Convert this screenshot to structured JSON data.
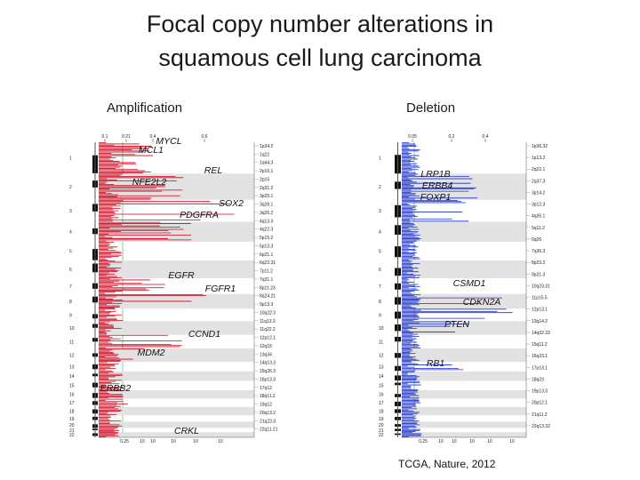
{
  "title_line1": "Focal copy number alterations in",
  "title_line2": "squamous cell lung carcinoma",
  "citation": "TCGA, Nature, 2012",
  "colors": {
    "amplification": "#d0021b",
    "deletion": "#1a2fcc",
    "band": "#e2e2e2",
    "ideogram": "#111111",
    "threshold": "#39a852"
  },
  "chart_data": [
    {
      "type": "bar",
      "panel_title": "Amplification",
      "orientation": "horizontal",
      "top_ticks": [
        "0.1",
        "0.21",
        "0.4",
        "0.6"
      ],
      "bottom_ticks": [
        "0.25",
        "10",
        "10",
        "10",
        "10",
        "10"
      ],
      "chromosomes": [
        "1",
        "2",
        "3",
        "4",
        "5",
        "6",
        "7",
        "8",
        "9",
        "10",
        "11",
        "12",
        "13",
        "14",
        "15",
        "16",
        "17",
        "18",
        "19",
        "20",
        "21",
        "22"
      ],
      "genes": [
        {
          "name": "MYCL",
          "chr": "1"
        },
        {
          "name": "MCL1",
          "chr": "1"
        },
        {
          "name": "REL",
          "chr": "2"
        },
        {
          "name": "NFE2L2",
          "chr": "2"
        },
        {
          "name": "SOX2",
          "chr": "3"
        },
        {
          "name": "PDGFRA",
          "chr": "4"
        },
        {
          "name": "EGFR",
          "chr": "7"
        },
        {
          "name": "FGFR1",
          "chr": "8"
        },
        {
          "name": "CCND1",
          "chr": "11"
        },
        {
          "name": "MDM2",
          "chr": "12"
        },
        {
          "name": "ERBB2",
          "chr": "17"
        },
        {
          "name": "CRKL",
          "chr": "22"
        }
      ],
      "cytobands": [
        "1p34.2",
        "1q22",
        "1q44.3",
        "2p16.1",
        "2p15",
        "2q31.2",
        "3p25.1",
        "3q28.1",
        "3q26.2",
        "4q13.3",
        "4q22.3",
        "5p15.2",
        "5p13.3",
        "6p21.1",
        "6q22.31",
        "7p11.2",
        "7q31.1",
        "8p11.23",
        "8q24.21",
        "9p13.3",
        "10q22.3",
        "11q13.3",
        "11q22.2",
        "12p12.1",
        "12q15",
        "13q34",
        "14q13.3",
        "15q26.3",
        "16p13.3",
        "17q12",
        "18q11.2",
        "19q12",
        "20q13.2",
        "21q22.3",
        "22q11.21"
      ]
    },
    {
      "type": "bar",
      "panel_title": "Deletion",
      "orientation": "horizontal",
      "top_ticks": [
        "0.05",
        "0.2",
        "0.4"
      ],
      "bottom_ticks": [
        "0.25",
        "10",
        "10",
        "10",
        "10",
        "10"
      ],
      "chromosomes": [
        "1",
        "2",
        "3",
        "4",
        "5",
        "6",
        "7",
        "8",
        "9",
        "10",
        "11",
        "12",
        "13",
        "14",
        "15",
        "16",
        "17",
        "18",
        "19",
        "20",
        "21",
        "22"
      ],
      "genes": [
        {
          "name": "LRP1B",
          "chr": "2"
        },
        {
          "name": "ERBB4",
          "chr": "2"
        },
        {
          "name": "FOXP1",
          "chr": "3"
        },
        {
          "name": "CSMD1",
          "chr": "8"
        },
        {
          "name": "CDKN2A",
          "chr": "9"
        },
        {
          "name": "PTEN",
          "chr": "10"
        },
        {
          "name": "RB1",
          "chr": "13"
        }
      ],
      "cytobands": [
        "1p36.32",
        "1p13.2",
        "2q22.1",
        "2q37.3",
        "3p14.2",
        "3p12.3",
        "4q35.1",
        "5q11.2",
        "6q26",
        "7q36.3",
        "8p23.2",
        "9p21.3",
        "10q23.31",
        "11p15.5",
        "12p13.1",
        "13q14.2",
        "14q32.33",
        "15q11.2",
        "16q23.1",
        "17p13.1",
        "18q23",
        "19p13.3",
        "20p12.1",
        "21q11.2",
        "22q13.32"
      ]
    }
  ]
}
